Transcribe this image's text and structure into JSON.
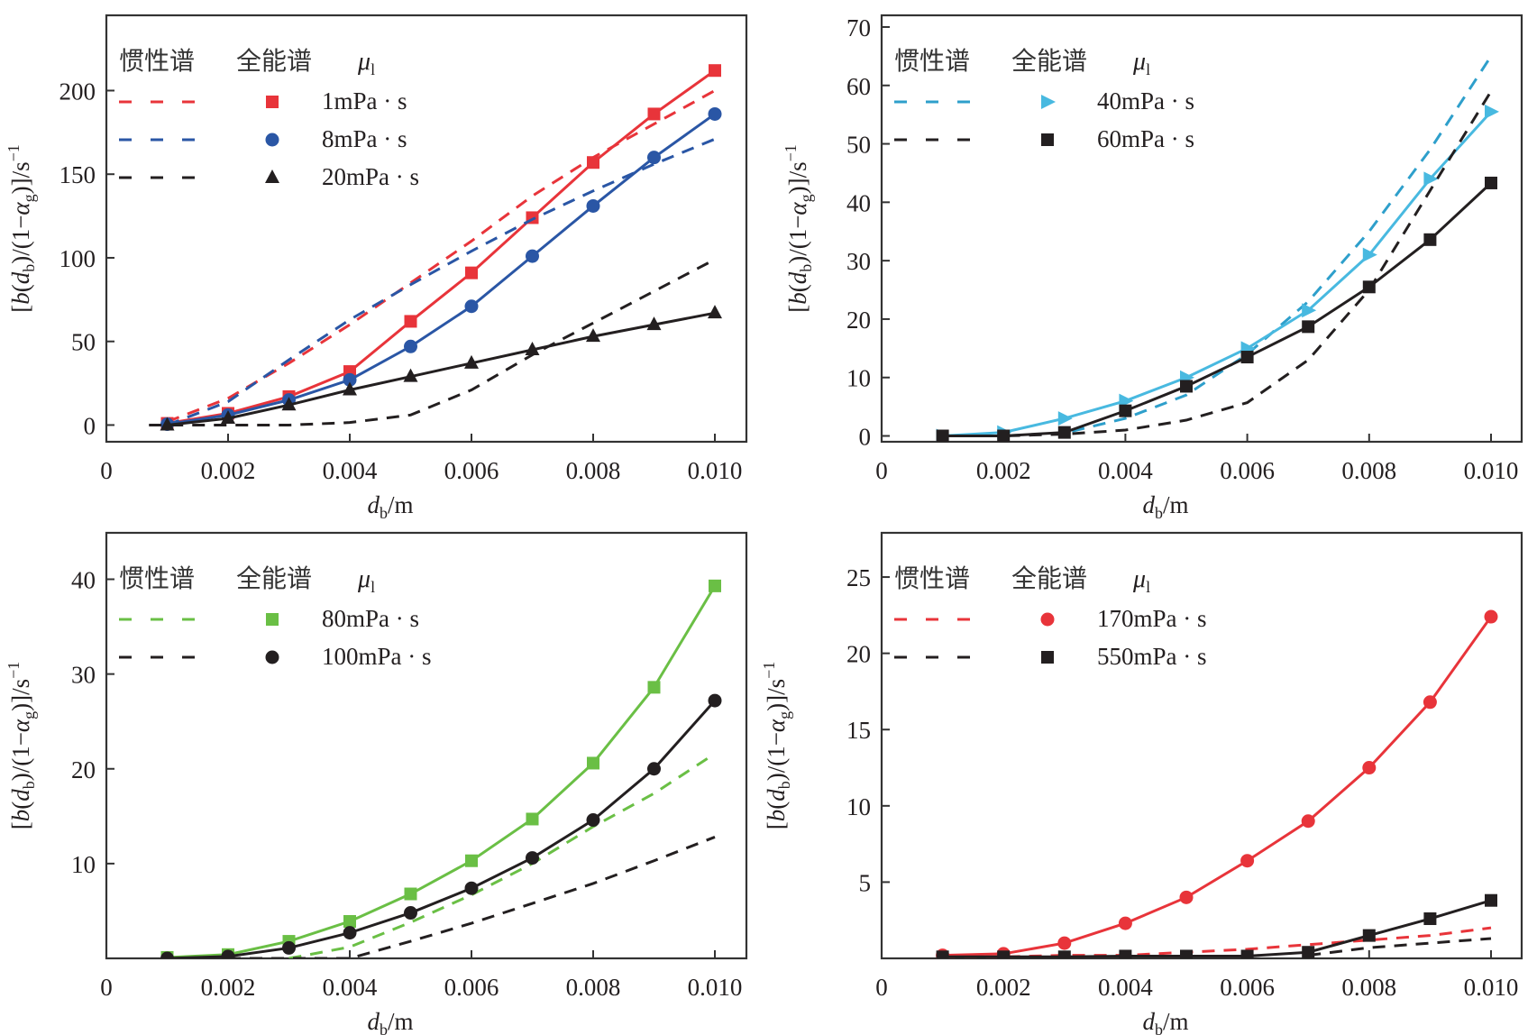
{
  "chart_data": [
    {
      "type": "line",
      "panel": "top-left",
      "xlabel": "d_b/m",
      "ylabel": "[b(d_b)/(1−α_g)]/s⁻¹",
      "xlim": [
        0,
        0.0103
      ],
      "ylim": [
        -10,
        245
      ],
      "xticks": [
        0,
        0.002,
        0.004,
        0.006,
        0.008,
        0.01
      ],
      "xtick_labels": [
        "0",
        "0.002",
        "0.004",
        "0.006",
        "0.008",
        "0.010"
      ],
      "yticks": [
        0,
        50,
        100,
        150,
        200
      ],
      "ytick_labels": [
        "0",
        "50",
        "100",
        "150",
        "200"
      ],
      "legend": {
        "position": "top-left",
        "col1": "惯性谱",
        "col2": "全能谱",
        "col3": "μ",
        "col3_sub": "l"
      },
      "series": [
        {
          "name": "1mPa · s",
          "color": "#e8343a",
          "marker": "square",
          "x": [
            0.001,
            0.002,
            0.003,
            0.004,
            0.005,
            0.006,
            0.007,
            0.008,
            0.009,
            0.01
          ],
          "values": [
            1,
            7,
            17,
            32,
            62,
            91,
            124,
            157,
            186,
            212
          ],
          "dashed_x": [
            0.001,
            0.002,
            0.003,
            0.004,
            0.005,
            0.006,
            0.007,
            0.008,
            0.009,
            0.01
          ],
          "dashed_values": [
            2,
            16,
            37,
            60,
            85,
            110,
            137,
            160,
            180,
            200
          ]
        },
        {
          "name": "8mPa · s",
          "color": "#2a56a5",
          "marker": "circle",
          "x": [
            0.001,
            0.002,
            0.003,
            0.004,
            0.005,
            0.006,
            0.007,
            0.008,
            0.009,
            0.01
          ],
          "values": [
            0.5,
            6,
            15,
            27,
            47,
            71,
            101,
            131,
            160,
            186
          ],
          "dashed_x": [
            0.001,
            0.002,
            0.003,
            0.004,
            0.005,
            0.006,
            0.007,
            0.008,
            0.009,
            0.01
          ],
          "dashed_values": [
            0,
            14,
            39,
            63,
            84,
            104,
            123,
            140,
            156,
            171
          ]
        },
        {
          "name": "20mPa · s",
          "color": "#231f20",
          "marker": "triangle",
          "x": [
            0.001,
            0.002,
            0.003,
            0.004,
            0.005,
            0.006,
            0.007,
            0.008,
            0.009,
            0.01
          ],
          "values": [
            0,
            4,
            12,
            21,
            29,
            37,
            45,
            53,
            60,
            67
          ],
          "dashed_x": [
            0.0007,
            0.001,
            0.002,
            0.003,
            0.004,
            0.005,
            0.006,
            0.007,
            0.008,
            0.009,
            0.01
          ],
          "dashed_values": [
            0,
            0,
            0,
            0,
            1.5,
            6,
            21,
            42,
            61,
            80,
            99
          ]
        }
      ]
    },
    {
      "type": "line",
      "panel": "top-right",
      "xlabel": "d_b/m",
      "ylabel": "[b(d_b)/(1−α_g)]/s⁻¹",
      "xlim": [
        0,
        0.0105
      ],
      "ylim": [
        -1,
        72
      ],
      "xticks": [
        0,
        0.002,
        0.004,
        0.006,
        0.008,
        0.01
      ],
      "xtick_labels": [
        "0",
        "0.002",
        "0.004",
        "0.006",
        "0.008",
        "0.010"
      ],
      "yticks": [
        0,
        10,
        20,
        30,
        40,
        50,
        60,
        70
      ],
      "ytick_labels": [
        "0",
        "10",
        "20",
        "30",
        "40",
        "50",
        "60",
        "70"
      ],
      "legend": {
        "position": "top-left",
        "col1": "惯性谱",
        "col2": "全能谱",
        "col3": "μ",
        "col3_sub": "l"
      },
      "series": [
        {
          "name": "40mPa · s",
          "color": "#48b9e0",
          "marker": "triangle-right",
          "x": [
            0.001,
            0.002,
            0.003,
            0.004,
            0.005,
            0.006,
            0.007,
            0.008,
            0.009,
            0.01
          ],
          "values": [
            0,
            0.6,
            3,
            6,
            10,
            15,
            21.5,
            31,
            44,
            55.5
          ],
          "dashed_x": [
            0.001,
            0.002,
            0.003,
            0.004,
            0.005,
            0.006,
            0.007,
            0.008,
            0.009,
            0.01
          ],
          "dashed_values": [
            0,
            0,
            0.5,
            3,
            7,
            14,
            23,
            35,
            49,
            65
          ],
          "dashed_color": "#2e9fcb"
        },
        {
          "name": "60mPa · s",
          "color": "#231f20",
          "marker": "square",
          "x": [
            0.001,
            0.002,
            0.003,
            0.004,
            0.005,
            0.006,
            0.007,
            0.008,
            0.009,
            0.01
          ],
          "values": [
            0,
            0,
            0.6,
            4.3,
            8.5,
            13.5,
            18.7,
            25.5,
            33.6,
            43.3
          ],
          "dashed_x": [
            0.001,
            0.002,
            0.003,
            0.004,
            0.005,
            0.006,
            0.007,
            0.008,
            0.009,
            0.01
          ],
          "dashed_values": [
            0,
            0,
            0.3,
            1,
            2.7,
            5.7,
            13,
            25,
            42,
            59
          ]
        }
      ]
    },
    {
      "type": "line",
      "panel": "bottom-left",
      "xlabel": "d_b/m",
      "ylabel": "[b(d_b)/(1−α_g)]/s⁻¹",
      "xlim": [
        0,
        0.0103
      ],
      "ylim": [
        0,
        44.9
      ],
      "xticks": [
        0,
        0.002,
        0.004,
        0.006,
        0.008,
        0.01
      ],
      "xtick_labels": [
        "0",
        "0.002",
        "0.004",
        "0.006",
        "0.008",
        "0.010"
      ],
      "yticks": [
        10,
        20,
        30,
        40
      ],
      "ytick_labels": [
        "10",
        "20",
        "30",
        "40"
      ],
      "legend": {
        "position": "top-left",
        "col1": "惯性谱",
        "col2": "全能谱",
        "col3": "μ",
        "col3_sub": "l"
      },
      "series": [
        {
          "name": "80mPa · s",
          "color": "#6abf45",
          "marker": "square",
          "x": [
            0.001,
            0.002,
            0.003,
            0.004,
            0.005,
            0.006,
            0.007,
            0.008,
            0.009,
            0.01
          ],
          "values": [
            0.1,
            0.4,
            1.8,
            3.9,
            6.8,
            10.3,
            14.7,
            20.6,
            28.6,
            39.3
          ],
          "dashed_x": [
            0.003,
            0.004,
            0.005,
            0.006,
            0.007,
            0.008,
            0.009,
            0.01
          ],
          "dashed_values": [
            0,
            1.2,
            3.8,
            6.7,
            10,
            13.9,
            17.4,
            21.6
          ]
        },
        {
          "name": "100mPa · s",
          "color": "#231f20",
          "marker": "circle",
          "x": [
            0.001,
            0.002,
            0.003,
            0.004,
            0.005,
            0.006,
            0.007,
            0.008,
            0.009,
            0.01
          ],
          "values": [
            0,
            0.2,
            1.1,
            2.7,
            4.8,
            7.4,
            10.6,
            14.6,
            20,
            27.2
          ],
          "dashed_x": [
            0.002,
            0.003,
            0.004,
            0.005,
            0.006,
            0.007,
            0.008,
            0.009,
            0.01
          ],
          "dashed_values": [
            0,
            0,
            0,
            1.8,
            3.7,
            5.8,
            7.9,
            10.3,
            12.8
          ]
        }
      ]
    },
    {
      "type": "line",
      "panel": "bottom-right",
      "xlabel": "d_b/m",
      "ylabel": "[b(d_b)/(1−α_g)]/s⁻¹",
      "xlim": [
        0,
        0.0105
      ],
      "ylim": [
        0,
        27.9
      ],
      "xticks": [
        0,
        0.002,
        0.004,
        0.006,
        0.008,
        0.01
      ],
      "xtick_labels": [
        "0",
        "0.002",
        "0.004",
        "0.006",
        "0.008",
        "0.010"
      ],
      "yticks": [
        5,
        10,
        15,
        20,
        25
      ],
      "ytick_labels": [
        "5",
        "10",
        "15",
        "20",
        "25"
      ],
      "legend": {
        "position": "top-left",
        "col1": "惯性谱",
        "col2": "全能谱",
        "col3": "μ",
        "col3_sub": "l"
      },
      "series": [
        {
          "name": "170mPa · s",
          "color": "#e8343a",
          "marker": "circle",
          "x": [
            0.001,
            0.002,
            0.003,
            0.004,
            0.005,
            0.006,
            0.007,
            0.008,
            0.009,
            0.01
          ],
          "values": [
            0.2,
            0.3,
            1,
            2.3,
            4,
            6.4,
            9,
            12.5,
            16.8,
            22.4
          ],
          "dashed_x": [
            0.001,
            0.002,
            0.003,
            0.004,
            0.005,
            0.006,
            0.007,
            0.008,
            0.009,
            0.01
          ],
          "dashed_values": [
            0.1,
            0.1,
            0.2,
            0.2,
            0.4,
            0.6,
            0.9,
            1.2,
            1.5,
            2
          ]
        },
        {
          "name": "550mPa · s",
          "color": "#231f20",
          "marker": "square",
          "x": [
            0.001,
            0.002,
            0.003,
            0.004,
            0.005,
            0.006,
            0.007,
            0.008,
            0.009,
            0.01
          ],
          "values": [
            0.1,
            0.1,
            0.1,
            0.15,
            0.15,
            0.15,
            0.4,
            1.5,
            2.6,
            3.8
          ],
          "dashed_x": [
            0.007,
            0.008,
            0.009,
            0.01
          ],
          "dashed_values": [
            0.2,
            0.7,
            1,
            1.3
          ]
        }
      ]
    }
  ]
}
